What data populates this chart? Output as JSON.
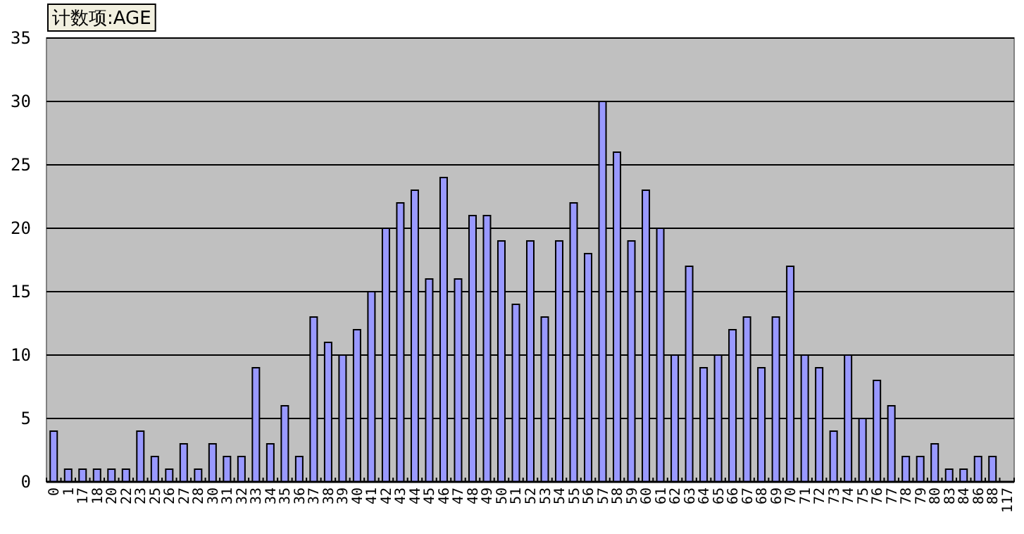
{
  "chart_data": {
    "type": "bar",
    "title": "计数项:AGE",
    "categories": [
      "0",
      "1",
      "17",
      "18",
      "20",
      "22",
      "23",
      "25",
      "26",
      "27",
      "28",
      "30",
      "31",
      "32",
      "33",
      "34",
      "35",
      "36",
      "37",
      "38",
      "39",
      "40",
      "41",
      "42",
      "43",
      "44",
      "45",
      "46",
      "47",
      "48",
      "49",
      "50",
      "51",
      "52",
      "53",
      "54",
      "55",
      "56",
      "57",
      "58",
      "59",
      "60",
      "61",
      "62",
      "63",
      "64",
      "65",
      "66",
      "67",
      "68",
      "69",
      "70",
      "71",
      "72",
      "73",
      "74",
      "75",
      "76",
      "77",
      "78",
      "79",
      "80",
      "83",
      "84",
      "86",
      "88",
      "117"
    ],
    "values": [
      4,
      1,
      1,
      1,
      1,
      1,
      4,
      2,
      1,
      3,
      1,
      3,
      2,
      2,
      9,
      3,
      6,
      2,
      13,
      11,
      10,
      12,
      15,
      20,
      22,
      23,
      16,
      24,
      16,
      21,
      21,
      19,
      14,
      19,
      13,
      19,
      22,
      18,
      30,
      26,
      19,
      23,
      20,
      10,
      17,
      9,
      10,
      12,
      13,
      9,
      13,
      17,
      10,
      9,
      4,
      10,
      5,
      8,
      6,
      2,
      2,
      3,
      1,
      1,
      2,
      2,
      null
    ],
    "color": "#9999ff",
    "ylim": [
      0,
      35
    ],
    "yticks": [
      0,
      5,
      10,
      15,
      20,
      25,
      30,
      35
    ],
    "grid": "y"
  }
}
